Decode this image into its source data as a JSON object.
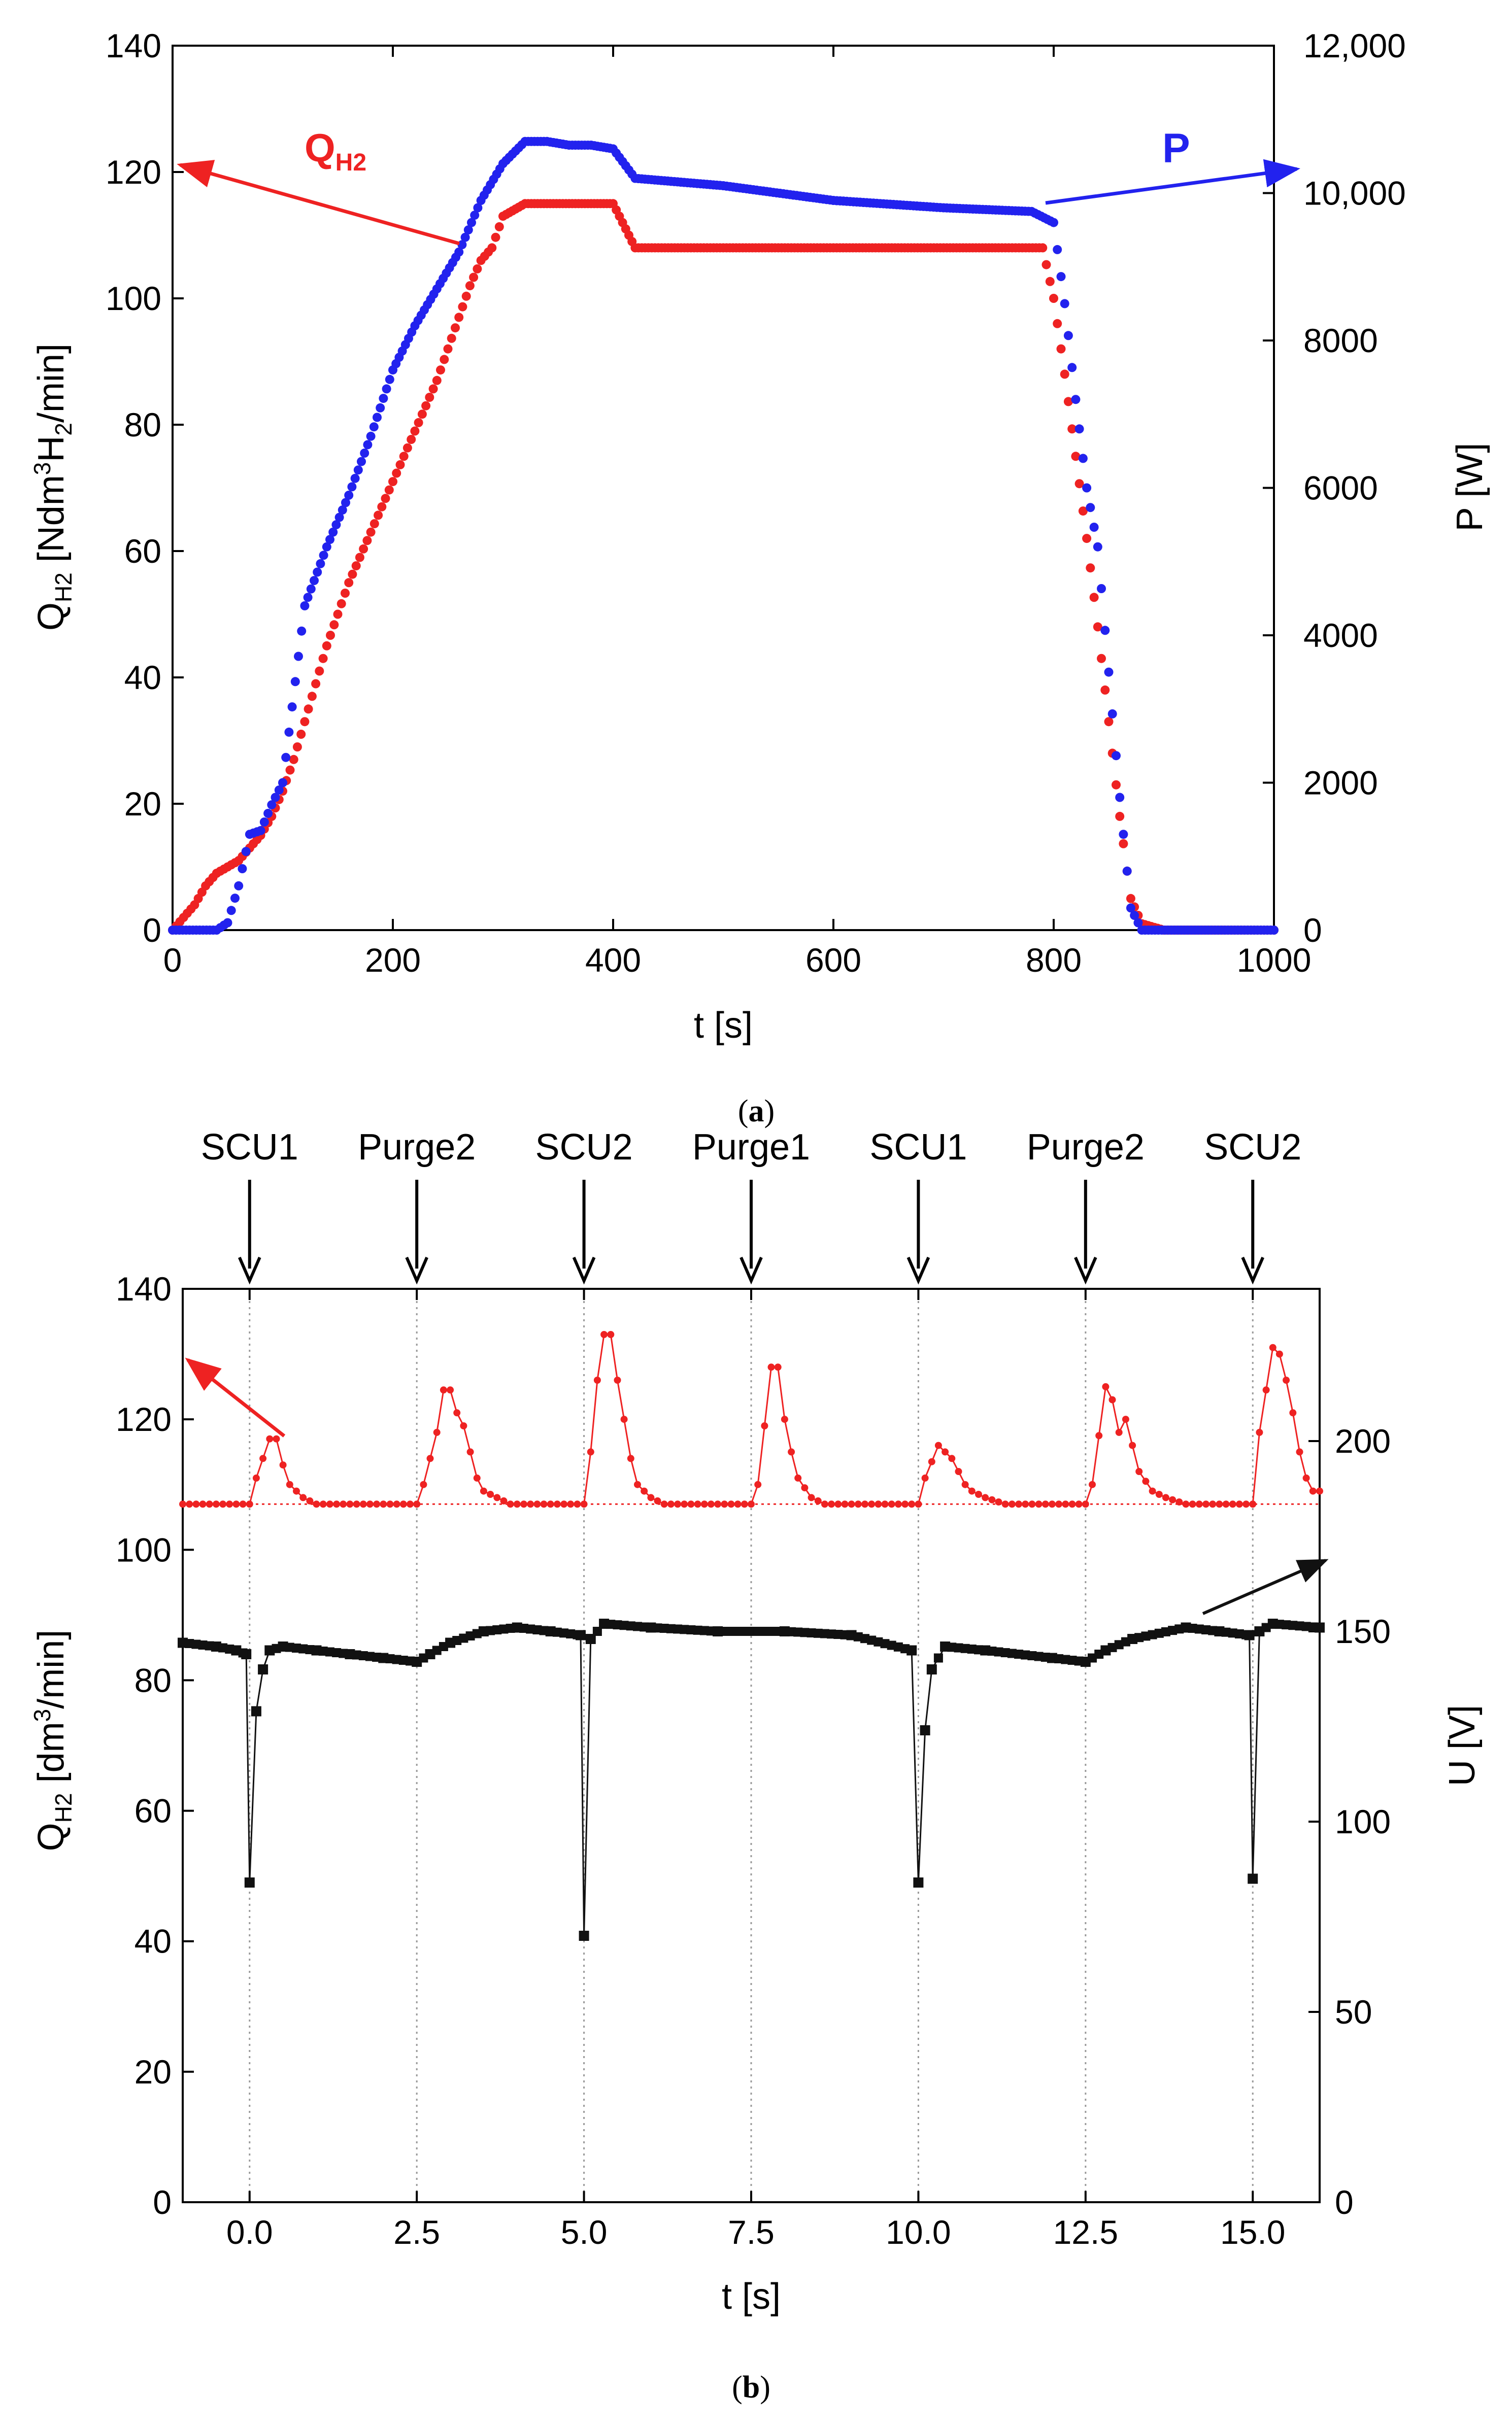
{
  "chart_data": [
    {
      "id": "a",
      "type": "scatter",
      "caption_open": "(",
      "caption_label": "a",
      "caption_close": ")",
      "xlabel": "t [s]",
      "ylabel_left": {
        "a": "Q",
        "b": "H2",
        "c": " [Ndm",
        "d": "3",
        "e": "H",
        "f": "2",
        "g": "/min]"
      },
      "ylabel_right": "P [W]",
      "xlim": [
        0,
        1000
      ],
      "ylim_left": [
        0,
        140
      ],
      "ylim_right": [
        0,
        12000
      ],
      "x_ticks": [
        "0",
        "200",
        "400",
        "600",
        "800",
        "1000"
      ],
      "y_left_ticks": [
        "0",
        "20",
        "40",
        "60",
        "80",
        "100",
        "120",
        "140"
      ],
      "y_right_ticks": [
        "0",
        "2000",
        "4000",
        "6000",
        "8000",
        "10,000",
        "12,000"
      ],
      "annotations": {
        "q_main": "Q",
        "q_sub": "H2",
        "p_label": "P"
      },
      "colors": {
        "q": "#ee2222",
        "p": "#2222ee"
      },
      "series": [
        {
          "name": "Q_H2",
          "axis": "left",
          "color": "#ee2222",
          "points": [
            [
              0,
              0
            ],
            [
              10,
              2
            ],
            [
              20,
              4
            ],
            [
              30,
              7
            ],
            [
              40,
              9
            ],
            [
              50,
              10
            ],
            [
              60,
              11
            ],
            [
              70,
              13
            ],
            [
              80,
              15
            ],
            [
              90,
              18
            ],
            [
              100,
              22
            ],
            [
              110,
              27
            ],
            [
              120,
              33
            ],
            [
              130,
              39
            ],
            [
              140,
              45
            ],
            [
              150,
              50
            ],
            [
              160,
              55
            ],
            [
              170,
              59
            ],
            [
              180,
              63
            ],
            [
              190,
              67
            ],
            [
              200,
              71
            ],
            [
              210,
              75
            ],
            [
              220,
              79
            ],
            [
              230,
              83
            ],
            [
              240,
              87
            ],
            [
              250,
              92
            ],
            [
              260,
              97
            ],
            [
              270,
              102
            ],
            [
              280,
              106
            ],
            [
              290,
              108
            ],
            [
              300,
              113
            ],
            [
              320,
              115
            ],
            [
              340,
              115
            ],
            [
              360,
              115
            ],
            [
              380,
              115
            ],
            [
              400,
              115
            ],
            [
              420,
              108
            ],
            [
              450,
              108
            ],
            [
              500,
              108
            ],
            [
              550,
              108
            ],
            [
              600,
              108
            ],
            [
              650,
              108
            ],
            [
              700,
              108
            ],
            [
              750,
              108
            ],
            [
              790,
              108
            ],
            [
              800,
              100
            ],
            [
              810,
              88
            ],
            [
              820,
              75
            ],
            [
              830,
              62
            ],
            [
              840,
              48
            ],
            [
              850,
              33
            ],
            [
              860,
              18
            ],
            [
              870,
              5
            ],
            [
              880,
              1
            ],
            [
              900,
              0
            ],
            [
              950,
              0
            ],
            [
              1000,
              0
            ]
          ]
        },
        {
          "name": "P",
          "axis": "right",
          "color": "#2222ee",
          "points": [
            [
              0,
              0
            ],
            [
              40,
              0
            ],
            [
              50,
              100
            ],
            [
              60,
              600
            ],
            [
              70,
              1300
            ],
            [
              80,
              1350
            ],
            [
              90,
              1700
            ],
            [
              100,
              2000
            ],
            [
              120,
              4400
            ],
            [
              140,
              5200
            ],
            [
              160,
              5900
            ],
            [
              180,
              6700
            ],
            [
              200,
              7600
            ],
            [
              220,
              8200
            ],
            [
              240,
              8700
            ],
            [
              260,
              9200
            ],
            [
              280,
              9900
            ],
            [
              300,
              10400
            ],
            [
              320,
              10700
            ],
            [
              340,
              10700
            ],
            [
              360,
              10650
            ],
            [
              380,
              10650
            ],
            [
              400,
              10600
            ],
            [
              420,
              10200
            ],
            [
              500,
              10100
            ],
            [
              600,
              9900
            ],
            [
              700,
              9800
            ],
            [
              780,
              9750
            ],
            [
              800,
              9600
            ],
            [
              810,
              8500
            ],
            [
              820,
              7200
            ],
            [
              830,
              6000
            ],
            [
              840,
              5200
            ],
            [
              850,
              3500
            ],
            [
              860,
              1800
            ],
            [
              870,
              300
            ],
            [
              880,
              0
            ],
            [
              1000,
              0
            ]
          ]
        }
      ]
    },
    {
      "id": "b",
      "type": "line",
      "caption_open": "(",
      "caption_label": "b",
      "caption_close": ")",
      "xlabel": "t [s]",
      "ylabel_left": {
        "a": "Q",
        "b": "H2",
        "c": " [dm",
        "d": "3",
        "e": "/min]"
      },
      "ylabel_right": "U [V]",
      "xlim": [
        -1,
        16
      ],
      "ylim_left": [
        0,
        140
      ],
      "ylim_right": [
        0,
        240
      ],
      "x_ticks": [
        "0.0",
        "2.5",
        "5.0",
        "7.5",
        "10.0",
        "12.5",
        "15.0"
      ],
      "y_left_ticks": [
        "0",
        "20",
        "40",
        "60",
        "80",
        "100",
        "120",
        "140"
      ],
      "y_right_ticks": [
        "0",
        "50",
        "100",
        "150",
        "200"
      ],
      "events": [
        {
          "label": "SCU1",
          "t": 0.0
        },
        {
          "label": "Purge2",
          "t": 2.5
        },
        {
          "label": "SCU2",
          "t": 5.0
        },
        {
          "label": "Purge1",
          "t": 7.5
        },
        {
          "label": "SCU1",
          "t": 10.0
        },
        {
          "label": "Purge2",
          "t": 12.5
        },
        {
          "label": "SCU2",
          "t": 15.0
        }
      ],
      "baseline": 107,
      "colors": {
        "q": "#ee2222",
        "u": "#111111"
      },
      "series": [
        {
          "name": "Q_H2",
          "axis": "left",
          "color": "#ee2222",
          "points": [
            [
              -1.0,
              107
            ],
            [
              0.0,
              107
            ],
            [
              0.1,
              111
            ],
            [
              0.2,
              114
            ],
            [
              0.3,
              117
            ],
            [
              0.4,
              117
            ],
            [
              0.5,
              113
            ],
            [
              0.6,
              110
            ],
            [
              0.7,
              109
            ],
            [
              0.8,
              108
            ],
            [
              1.0,
              107
            ],
            [
              2.5,
              107
            ],
            [
              2.6,
              110
            ],
            [
              2.8,
              118
            ],
            [
              2.9,
              124.5
            ],
            [
              3.0,
              124.5
            ],
            [
              3.1,
              121
            ],
            [
              3.2,
              119
            ],
            [
              3.3,
              115
            ],
            [
              3.4,
              111
            ],
            [
              3.5,
              109
            ],
            [
              3.7,
              108
            ],
            [
              3.9,
              107
            ],
            [
              5.0,
              107
            ],
            [
              5.1,
              115
            ],
            [
              5.2,
              126
            ],
            [
              5.3,
              133
            ],
            [
              5.4,
              133
            ],
            [
              5.5,
              126
            ],
            [
              5.6,
              120
            ],
            [
              5.7,
              114
            ],
            [
              5.8,
              110
            ],
            [
              6.0,
              108
            ],
            [
              6.2,
              107
            ],
            [
              7.5,
              107
            ],
            [
              7.6,
              110
            ],
            [
              7.8,
              128
            ],
            [
              7.9,
              128
            ],
            [
              8.0,
              120
            ],
            [
              8.1,
              115
            ],
            [
              8.2,
              111
            ],
            [
              8.4,
              108
            ],
            [
              8.6,
              107
            ],
            [
              10.0,
              107
            ],
            [
              10.1,
              111
            ],
            [
              10.3,
              116
            ],
            [
              10.4,
              115
            ],
            [
              10.5,
              114
            ],
            [
              10.6,
              112
            ],
            [
              10.7,
              110
            ],
            [
              10.8,
              109
            ],
            [
              11.0,
              108
            ],
            [
              11.3,
              107
            ],
            [
              12.5,
              107
            ],
            [
              12.6,
              110
            ],
            [
              12.8,
              125
            ],
            [
              12.9,
              123
            ],
            [
              13.0,
              118
            ],
            [
              13.1,
              120
            ],
            [
              13.2,
              116
            ],
            [
              13.3,
              112
            ],
            [
              13.5,
              109
            ],
            [
              13.7,
              108
            ],
            [
              14.0,
              107
            ],
            [
              15.0,
              107
            ],
            [
              15.1,
              118
            ],
            [
              15.3,
              131
            ],
            [
              15.4,
              130
            ],
            [
              15.5,
              126
            ],
            [
              15.6,
              121
            ],
            [
              15.7,
              115
            ],
            [
              15.8,
              111
            ],
            [
              15.9,
              109
            ],
            [
              16.0,
              109
            ]
          ]
        },
        {
          "name": "U",
          "axis": "right",
          "color": "#111111",
          "points": [
            [
              -1.0,
              147
            ],
            [
              -0.5,
              146
            ],
            [
              -0.2,
              145
            ],
            [
              -0.05,
              144
            ],
            [
              0.0,
              84
            ],
            [
              0.1,
              129
            ],
            [
              0.2,
              140
            ],
            [
              0.3,
              145
            ],
            [
              0.5,
              146
            ],
            [
              1.0,
              145
            ],
            [
              1.5,
              144
            ],
            [
              2.0,
              143
            ],
            [
              2.5,
              142
            ],
            [
              2.7,
              144
            ],
            [
              3.0,
              147
            ],
            [
              3.5,
              150
            ],
            [
              4.0,
              151
            ],
            [
              4.5,
              150
            ],
            [
              4.95,
              149
            ],
            [
              5.0,
              70
            ],
            [
              5.1,
              148
            ],
            [
              5.3,
              152
            ],
            [
              6.0,
              151
            ],
            [
              7.0,
              150
            ],
            [
              8.0,
              150
            ],
            [
              9.0,
              149
            ],
            [
              9.9,
              145
            ],
            [
              10.0,
              84
            ],
            [
              10.1,
              124
            ],
            [
              10.2,
              140
            ],
            [
              10.4,
              146
            ],
            [
              11.0,
              145
            ],
            [
              12.0,
              143
            ],
            [
              12.5,
              142
            ],
            [
              12.8,
              145
            ],
            [
              13.2,
              148
            ],
            [
              14.0,
              151
            ],
            [
              14.5,
              150
            ],
            [
              14.95,
              149
            ],
            [
              15.0,
              85
            ],
            [
              15.1,
              150
            ],
            [
              15.3,
              152
            ],
            [
              16.0,
              151
            ]
          ]
        }
      ]
    }
  ]
}
